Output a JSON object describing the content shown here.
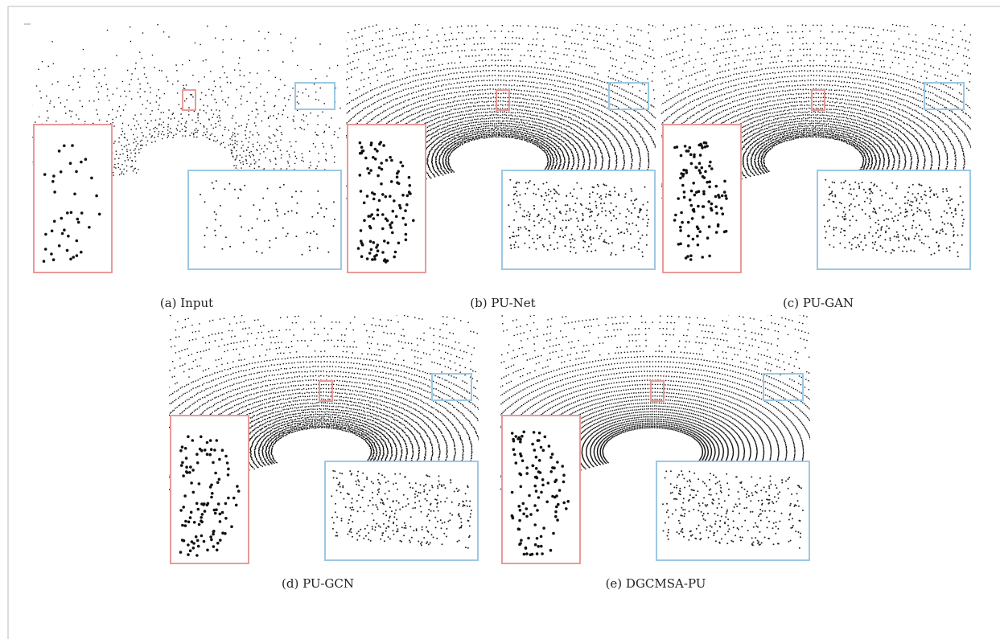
{
  "figure": {
    "panels": [
      {
        "caption": "(a) Input"
      },
      {
        "caption": "(b) PU-Net"
      },
      {
        "caption": "(c) PU-GAN"
      },
      {
        "caption": "(d) PU-GCN"
      },
      {
        "caption": "(e) DGCMSA-PU"
      }
    ]
  }
}
